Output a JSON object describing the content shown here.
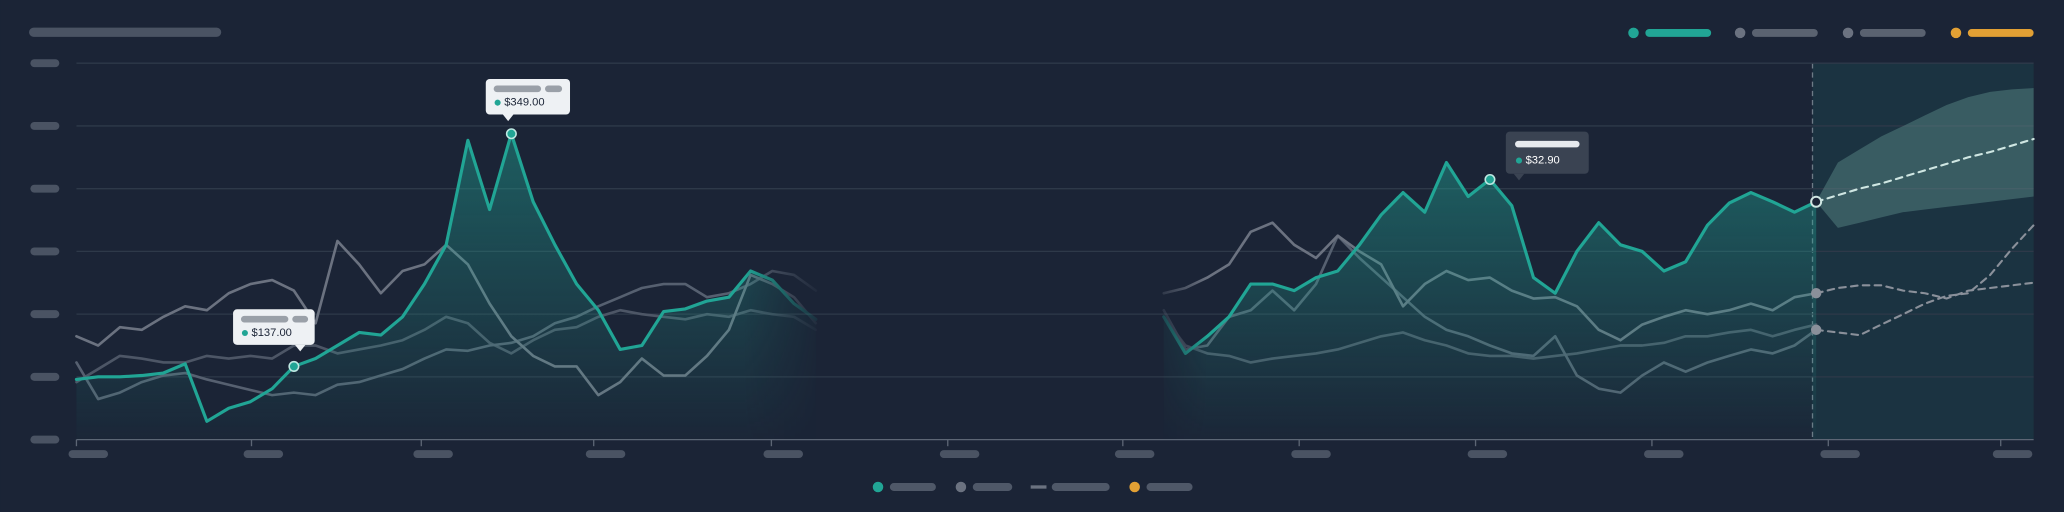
{
  "chart_data": {
    "type": "line",
    "xlim": [
      0,
      90
    ],
    "ylim": [
      0,
      288
    ],
    "yticks": [
      0,
      48,
      96,
      144,
      192,
      240,
      288
    ],
    "grid": true,
    "annotations": [
      "$137.00",
      "$349.00",
      "$32.90"
    ],
    "series": [
      {
        "color": "#21a595",
        "area": true,
        "values": [
          46,
          48,
          48,
          49,
          51,
          58,
          14,
          24,
          29,
          39,
          56,
          62,
          72,
          82,
          80,
          94,
          119,
          149,
          229,
          176,
          234,
          182,
          149,
          119,
          99,
          69,
          72,
          98,
          100,
          106,
          109,
          129,
          122,
          104,
          92,
          null,
          null,
          null,
          null,
          null,
          null,
          null,
          null,
          null,
          null,
          null,
          null,
          null,
          null,
          null,
          94,
          66,
          79,
          94,
          119,
          119,
          114,
          124,
          129,
          149,
          172,
          189,
          174,
          212,
          186,
          199,
          179,
          124,
          112,
          144,
          166,
          149,
          144,
          129,
          136,
          164,
          181,
          189,
          182,
          174,
          182,
          null,
          null,
          null,
          null,
          null,
          null,
          null,
          null,
          null,
          null
        ]
      },
      {
        "color": "#6b7280",
        "values": [
          79,
          72,
          86,
          84,
          94,
          102,
          99,
          112,
          119,
          122,
          114,
          89,
          152,
          134,
          112,
          129,
          134,
          149,
          134,
          104,
          79,
          64,
          56,
          56,
          34,
          44,
          62,
          49,
          49,
          64,
          84,
          126,
          119,
          109,
          89,
          null,
          null,
          null,
          null,
          null,
          null,
          null,
          null,
          null,
          null,
          null,
          null,
          null,
          null,
          null,
          112,
          116,
          124,
          134,
          159,
          166,
          149,
          139,
          156,
          144,
          134,
          102,
          119,
          129,
          122,
          124,
          114,
          108,
          109,
          102,
          84,
          76,
          88,
          94,
          99,
          96,
          99,
          104,
          99,
          109,
          112,
          null,
          null,
          null,
          null,
          null,
          null,
          null,
          null,
          null,
          null
        ]
      },
      {
        "color": "#566070",
        "values": [
          59,
          31,
          36,
          44,
          49,
          51,
          46,
          42,
          38,
          34,
          36,
          34,
          42,
          44,
          49,
          54,
          62,
          69,
          68,
          72,
          74,
          79,
          89,
          94,
          102,
          109,
          116,
          119,
          119,
          109,
          112,
          119,
          129,
          126,
          114,
          null,
          null,
          null,
          null,
          null,
          null,
          null,
          null,
          null,
          null,
          null,
          null,
          null,
          null,
          null,
          99,
          69,
          72,
          94,
          99,
          114,
          99,
          119,
          156,
          139,
          124,
          109,
          94,
          84,
          79,
          72,
          66,
          64,
          79,
          49,
          39,
          36,
          49,
          59,
          52,
          59,
          64,
          69,
          66,
          72,
          84,
          null,
          null,
          null,
          null,
          null,
          null,
          null,
          null,
          null,
          null
        ]
      },
      {
        "color": "#4d5666",
        "values": [
          44,
          54,
          64,
          62,
          59,
          59,
          64,
          62,
          64,
          62,
          72,
          72,
          66,
          69,
          72,
          76,
          84,
          94,
          89,
          74,
          66,
          76,
          84,
          86,
          94,
          99,
          96,
          94,
          92,
          96,
          94,
          99,
          96,
          94,
          84,
          null,
          null,
          null,
          null,
          null,
          null,
          null,
          null,
          null,
          null,
          null,
          null,
          null,
          null,
          null,
          94,
          72,
          66,
          64,
          59,
          62,
          64,
          66,
          69,
          74,
          79,
          82,
          76,
          72,
          66,
          64,
          64,
          62,
          64,
          66,
          69,
          72,
          72,
          74,
          79,
          79,
          82,
          84,
          79,
          84,
          88,
          null,
          null,
          null,
          null,
          null,
          null,
          null,
          null,
          null,
          null
        ]
      },
      {
        "color": "#cfe6e2",
        "dashed": true,
        "values": [
          null,
          null,
          null,
          null,
          null,
          null,
          null,
          null,
          null,
          null,
          null,
          null,
          null,
          null,
          null,
          null,
          null,
          null,
          null,
          null,
          null,
          null,
          null,
          null,
          null,
          null,
          null,
          null,
          null,
          null,
          null,
          null,
          null,
          null,
          null,
          null,
          null,
          null,
          null,
          null,
          null,
          null,
          null,
          null,
          null,
          null,
          null,
          null,
          null,
          null,
          null,
          null,
          null,
          null,
          null,
          null,
          null,
          null,
          null,
          null,
          null,
          null,
          null,
          null,
          null,
          null,
          null,
          null,
          null,
          null,
          null,
          null,
          null,
          null,
          null,
          null,
          null,
          null,
          null,
          null,
          182,
          187,
          192,
          196,
          201,
          206,
          211,
          216,
          220,
          225,
          230
        ]
      },
      {
        "color": "#8a909a",
        "dashed": true,
        "values": [
          null,
          null,
          null,
          null,
          null,
          null,
          null,
          null,
          null,
          null,
          null,
          null,
          null,
          null,
          null,
          null,
          null,
          null,
          null,
          null,
          null,
          null,
          null,
          null,
          null,
          null,
          null,
          null,
          null,
          null,
          null,
          null,
          null,
          null,
          null,
          null,
          null,
          null,
          null,
          null,
          null,
          null,
          null,
          null,
          null,
          null,
          null,
          null,
          null,
          null,
          null,
          null,
          null,
          null,
          null,
          null,
          null,
          null,
          null,
          null,
          null,
          null,
          null,
          null,
          null,
          null,
          null,
          null,
          null,
          null,
          null,
          null,
          null,
          null,
          null,
          null,
          null,
          null,
          null,
          null,
          112,
          116,
          118,
          118,
          114,
          112,
          108,
          114,
          116,
          118,
          120
        ]
      },
      {
        "color": "#8a909a",
        "dashed": true,
        "values": [
          null,
          null,
          null,
          null,
          null,
          null,
          null,
          null,
          null,
          null,
          null,
          null,
          null,
          null,
          null,
          null,
          null,
          null,
          null,
          null,
          null,
          null,
          null,
          null,
          null,
          null,
          null,
          null,
          null,
          null,
          null,
          null,
          null,
          null,
          null,
          null,
          null,
          null,
          null,
          null,
          null,
          null,
          null,
          null,
          null,
          null,
          null,
          null,
          null,
          null,
          null,
          null,
          null,
          null,
          null,
          null,
          null,
          null,
          null,
          null,
          null,
          null,
          null,
          null,
          null,
          null,
          null,
          null,
          null,
          null,
          null,
          null,
          null,
          null,
          null,
          null,
          null,
          null,
          null,
          null,
          84,
          82,
          80,
          88,
          96,
          104,
          110,
          112,
          126,
          146,
          164
        ]
      }
    ],
    "band": {
      "color": "#5f8f8c",
      "upper": [
        null,
        null,
        null,
        null,
        null,
        null,
        null,
        null,
        null,
        null,
        null,
        null,
        null,
        null,
        null,
        null,
        null,
        null,
        null,
        null,
        null,
        null,
        null,
        null,
        null,
        null,
        null,
        null,
        null,
        null,
        null,
        null,
        null,
        null,
        null,
        null,
        null,
        null,
        null,
        null,
        null,
        null,
        null,
        null,
        null,
        null,
        null,
        null,
        null,
        null,
        null,
        null,
        null,
        null,
        null,
        null,
        null,
        null,
        null,
        null,
        null,
        null,
        null,
        null,
        null,
        null,
        null,
        null,
        null,
        null,
        null,
        null,
        null,
        null,
        null,
        null,
        null,
        null,
        null,
        null,
        182,
        212,
        222,
        232,
        240,
        248,
        256,
        262,
        266,
        268,
        269
      ],
      "lower": [
        null,
        null,
        null,
        null,
        null,
        null,
        null,
        null,
        null,
        null,
        null,
        null,
        null,
        null,
        null,
        null,
        null,
        null,
        null,
        null,
        null,
        null,
        null,
        null,
        null,
        null,
        null,
        null,
        null,
        null,
        null,
        null,
        null,
        null,
        null,
        null,
        null,
        null,
        null,
        null,
        null,
        null,
        null,
        null,
        null,
        null,
        null,
        null,
        null,
        null,
        null,
        null,
        null,
        null,
        null,
        null,
        null,
        null,
        null,
        null,
        null,
        null,
        null,
        null,
        null,
        null,
        null,
        null,
        null,
        null,
        null,
        null,
        null,
        null,
        null,
        null,
        null,
        null,
        null,
        null,
        182,
        162,
        166,
        170,
        174,
        176,
        178,
        180,
        182,
        184,
        186
      ]
    }
  }
}
